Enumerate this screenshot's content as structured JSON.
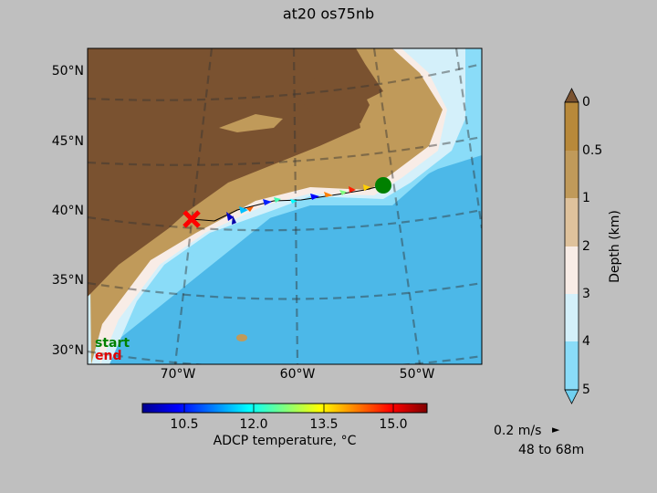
{
  "header": {
    "title": "at20 os75nb"
  },
  "map": {
    "lat_labels": [
      "50°N",
      "45°N",
      "40°N",
      "35°N",
      "30°N"
    ],
    "lon_labels": [
      "70°W",
      "60°W",
      "50°W"
    ],
    "legend": {
      "start": "start",
      "end": "end"
    }
  },
  "depth_colorbar": {
    "label": "Depth (km)",
    "ticks": [
      "0",
      "0.5",
      "1",
      "2",
      "3",
      "4",
      "5"
    ]
  },
  "temperature_colorbar": {
    "label": "ADCP temperature, °C",
    "ticks": [
      "10.5",
      "12.0",
      "13.5",
      "15.0"
    ]
  },
  "vector_key": {
    "speed": "0.2 m/s",
    "arrow": "►",
    "depth_range": "48 to 68m"
  }
}
